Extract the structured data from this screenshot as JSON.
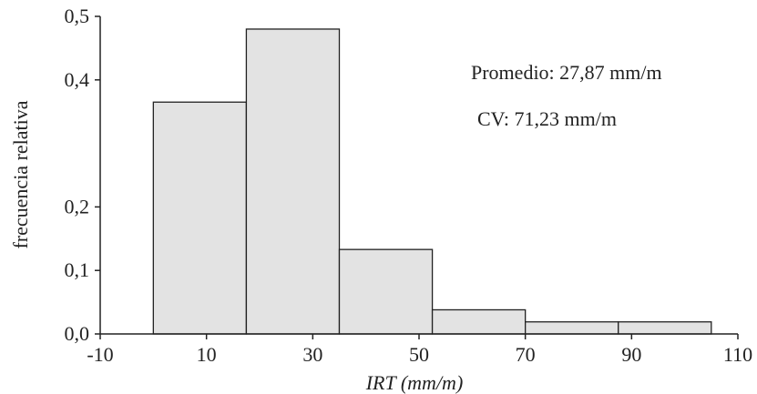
{
  "chart_data": {
    "type": "bar",
    "subtype": "histogram",
    "bins": [
      {
        "x0": 0,
        "x1": 17.5,
        "value": 0.365
      },
      {
        "x0": 17.5,
        "x1": 35,
        "value": 0.48
      },
      {
        "x0": 35,
        "x1": 52.5,
        "value": 0.133
      },
      {
        "x0": 52.5,
        "x1": 70,
        "value": 0.038
      },
      {
        "x0": 70,
        "x1": 87.5,
        "value": 0.019
      },
      {
        "x0": 87.5,
        "x1": 105,
        "value": 0.019
      }
    ],
    "xlim": [
      -10,
      110
    ],
    "ylim": [
      0,
      0.5
    ],
    "xticks": [
      -10,
      10,
      30,
      50,
      70,
      90,
      110
    ],
    "xtick_labels": [
      "-10",
      "10",
      "30",
      "50",
      "70",
      "90",
      "110"
    ],
    "yticks": [
      0,
      0.1,
      0.2,
      0.4,
      0.5
    ],
    "ytick_labels": [
      "0,0",
      "0,1",
      "0,2",
      "0,4",
      "0,5"
    ],
    "xlabel": "IRT (mm/m)",
    "ylabel": "frecuencia relativa",
    "annotations": [
      "Promedio: 27,87 mm/m",
      "CV: 71,23 mm/m"
    ],
    "grid": false,
    "colors": {
      "bar_fill": "#e3e3e3",
      "bar_stroke": "#222222",
      "axis": "#222222"
    }
  }
}
